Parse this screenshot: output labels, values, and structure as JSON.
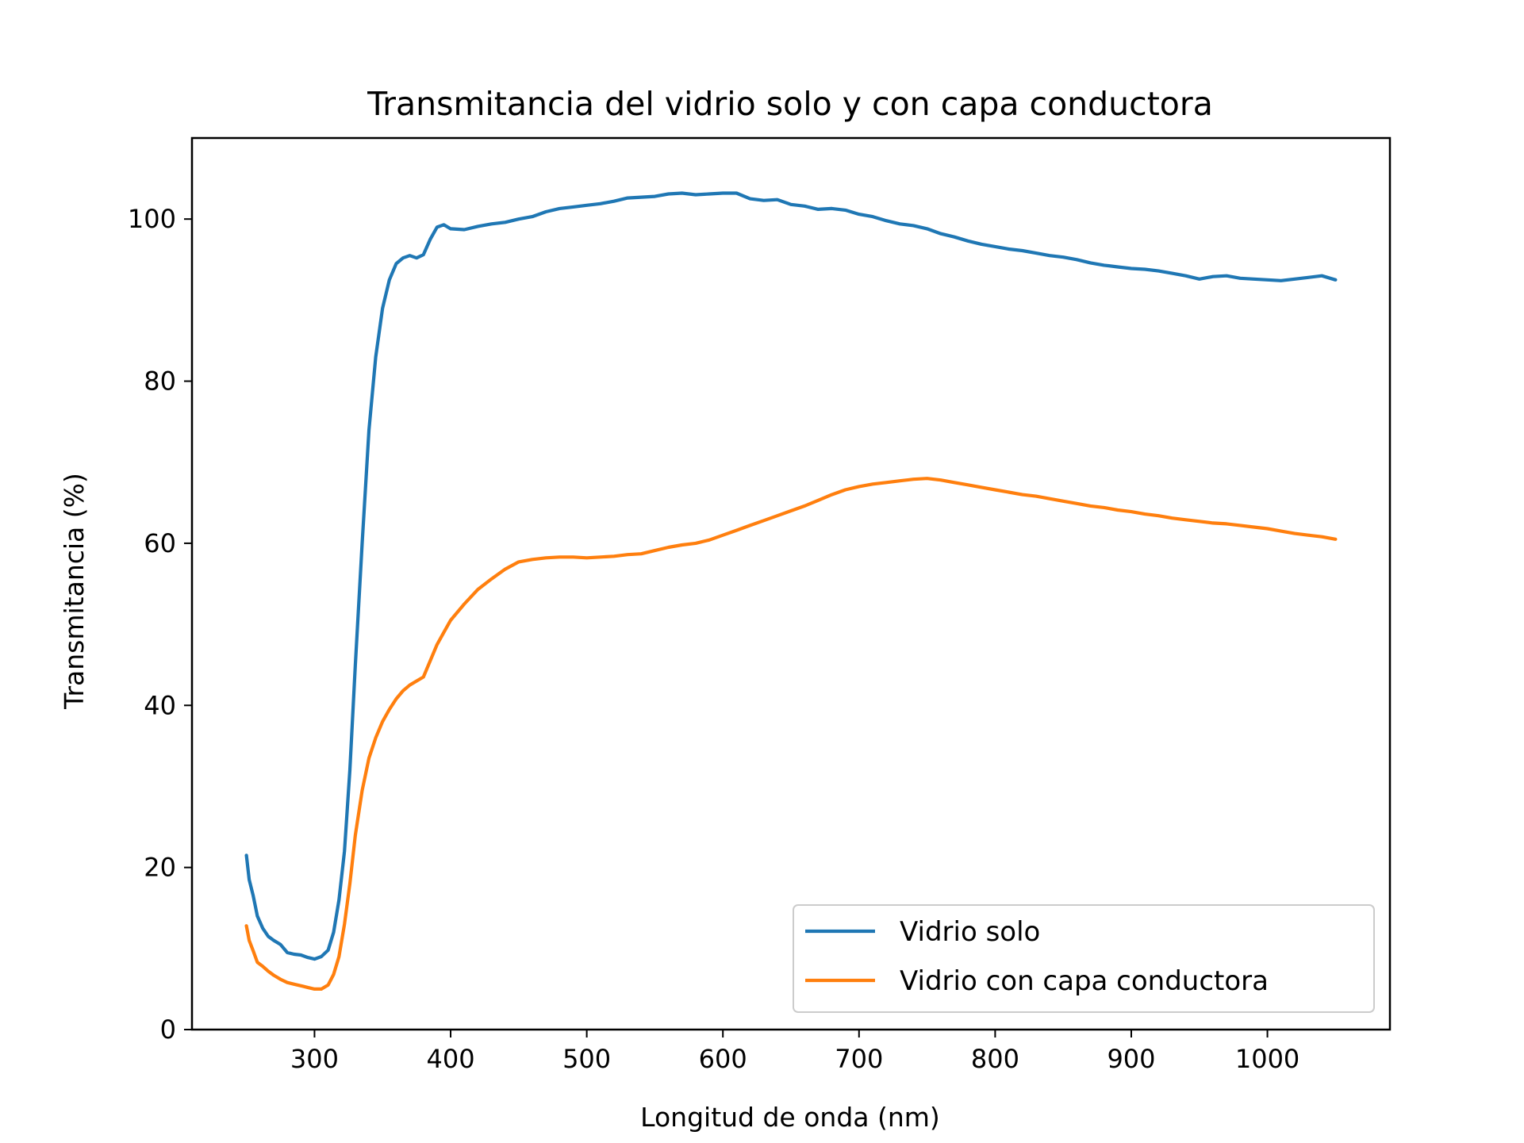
{
  "chart_data": {
    "type": "line",
    "title": "Transmitancia del vidrio solo y con capa conductora",
    "xlabel": "Longitud de onda (nm)",
    "ylabel": "Transmitancia (%)",
    "xlim": [
      210,
      1090
    ],
    "ylim": [
      0,
      110
    ],
    "xticks": [
      300,
      400,
      500,
      600,
      700,
      800,
      900,
      1000
    ],
    "yticks": [
      0,
      20,
      40,
      60,
      80,
      100
    ],
    "legend_position": "lower right",
    "grid": false,
    "series": [
      {
        "name": "Vidrio solo",
        "color": "#1f77b4",
        "x": [
          250,
          252,
          255,
          258,
          262,
          266,
          270,
          275,
          280,
          285,
          290,
          295,
          300,
          305,
          310,
          314,
          318,
          322,
          326,
          330,
          335,
          340,
          345,
          350,
          355,
          360,
          365,
          370,
          375,
          380,
          385,
          390,
          395,
          400,
          410,
          420,
          430,
          440,
          450,
          460,
          470,
          480,
          490,
          500,
          510,
          520,
          530,
          540,
          550,
          560,
          570,
          580,
          590,
          600,
          610,
          620,
          630,
          640,
          650,
          660,
          670,
          680,
          690,
          700,
          710,
          720,
          730,
          740,
          750,
          760,
          770,
          780,
          790,
          800,
          810,
          820,
          830,
          840,
          850,
          860,
          870,
          880,
          890,
          900,
          910,
          920,
          930,
          940,
          950,
          960,
          970,
          980,
          990,
          1000,
          1010,
          1020,
          1030,
          1040,
          1050
        ],
        "y": [
          21.5,
          18.5,
          16.5,
          14,
          12.5,
          11.5,
          11,
          10.5,
          9.5,
          9.3,
          9.2,
          8.9,
          8.7,
          9,
          9.8,
          12,
          16,
          22,
          32,
          45,
          60,
          74,
          83,
          89,
          92.5,
          94.5,
          95.2,
          95.5,
          95.2,
          95.6,
          97.5,
          99,
          99.3,
          98.8,
          98.7,
          99.1,
          99.4,
          99.6,
          100,
          100.3,
          100.9,
          101.3,
          101.5,
          101.7,
          101.9,
          102.2,
          102.6,
          102.7,
          102.8,
          103.1,
          103.2,
          103,
          103.1,
          103.2,
          103.2,
          102.5,
          102.3,
          102.4,
          101.8,
          101.6,
          101.2,
          101.3,
          101.1,
          100.6,
          100.3,
          99.8,
          99.4,
          99.2,
          98.8,
          98.2,
          97.8,
          97.3,
          96.9,
          96.6,
          96.3,
          96.1,
          95.8,
          95.5,
          95.3,
          95,
          94.6,
          94.3,
          94.1,
          93.9,
          93.8,
          93.6,
          93.3,
          93,
          92.6,
          92.9,
          93,
          92.7,
          92.6,
          92.5,
          92.4,
          92.6,
          92.8,
          93,
          92.5
        ]
      },
      {
        "name": "Vidrio con capa conductora",
        "color": "#ff7f0e",
        "x": [
          250,
          252,
          255,
          258,
          262,
          266,
          270,
          275,
          280,
          285,
          290,
          295,
          300,
          305,
          310,
          314,
          318,
          322,
          326,
          330,
          335,
          340,
          345,
          350,
          355,
          360,
          365,
          370,
          375,
          380,
          385,
          390,
          395,
          400,
          410,
          420,
          430,
          440,
          450,
          460,
          470,
          480,
          490,
          500,
          510,
          520,
          530,
          540,
          550,
          560,
          570,
          580,
          590,
          600,
          610,
          620,
          630,
          640,
          650,
          660,
          670,
          680,
          690,
          700,
          710,
          720,
          730,
          740,
          750,
          760,
          770,
          780,
          790,
          800,
          810,
          820,
          830,
          840,
          850,
          860,
          870,
          880,
          890,
          900,
          910,
          920,
          930,
          940,
          950,
          960,
          970,
          980,
          990,
          1000,
          1010,
          1020,
          1030,
          1040,
          1050
        ],
        "y": [
          12.8,
          11,
          9.7,
          8.3,
          7.8,
          7.2,
          6.7,
          6.2,
          5.8,
          5.6,
          5.4,
          5.2,
          5,
          5,
          5.5,
          6.8,
          9,
          13,
          18,
          24,
          29.5,
          33.5,
          36,
          38,
          39.5,
          40.8,
          41.8,
          42.5,
          43,
          43.5,
          45.5,
          47.5,
          49,
          50.5,
          52.5,
          54.3,
          55.6,
          56.8,
          57.7,
          58,
          58.2,
          58.3,
          58.3,
          58.2,
          58.3,
          58.4,
          58.6,
          58.7,
          59.1,
          59.5,
          59.8,
          60,
          60.4,
          61,
          61.6,
          62.2,
          62.8,
          63.4,
          64,
          64.6,
          65.3,
          66,
          66.6,
          67,
          67.3,
          67.5,
          67.7,
          67.9,
          68,
          67.8,
          67.5,
          67.2,
          66.9,
          66.6,
          66.3,
          66,
          65.8,
          65.5,
          65.2,
          64.9,
          64.6,
          64.4,
          64.1,
          63.9,
          63.6,
          63.4,
          63.1,
          62.9,
          62.7,
          62.5,
          62.4,
          62.2,
          62,
          61.8,
          61.5,
          61.2,
          61,
          60.8,
          60.5
        ]
      }
    ]
  }
}
